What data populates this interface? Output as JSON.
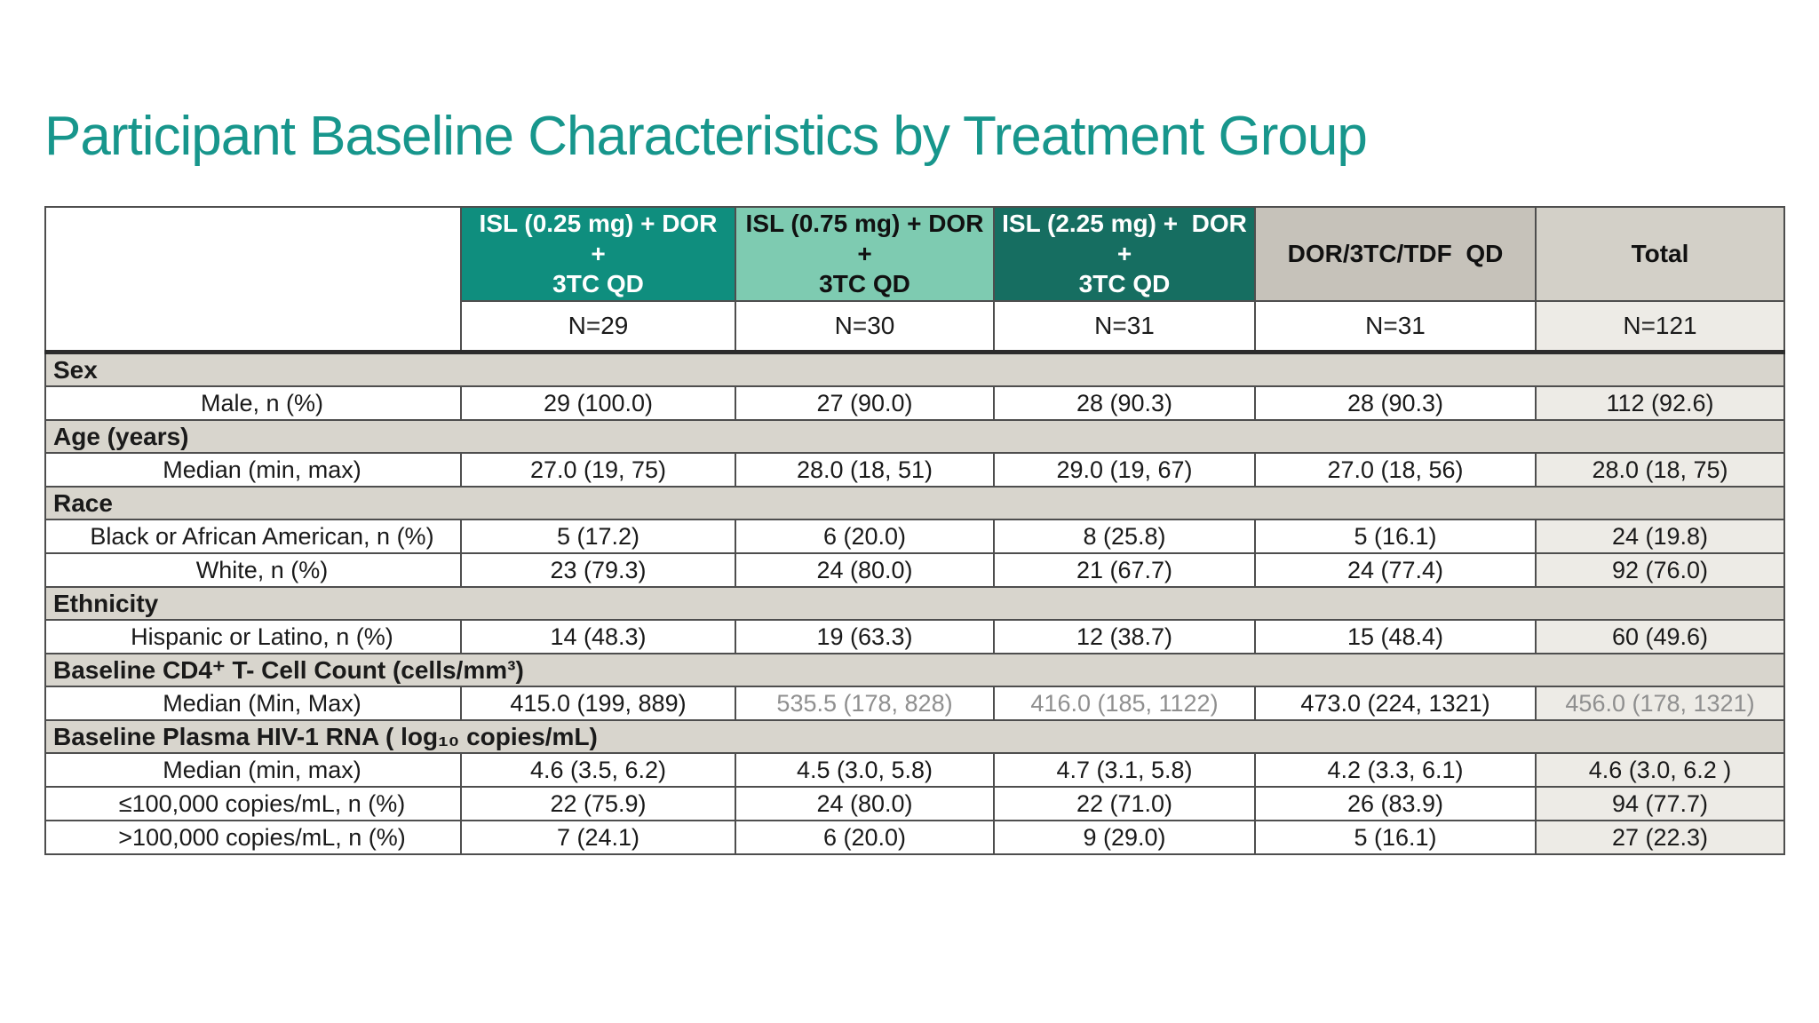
{
  "slide": {
    "title": "Participant Baseline Characteristics by Treatment Group"
  },
  "colors": {
    "title_accent": "#17968c",
    "header_teal": "#0f8e7e",
    "header_light_green": "#7ecbb1",
    "header_dark_teal": "#166e61",
    "header_gray": "#c6c2ba",
    "header_total_gray": "#d3d0c8",
    "section_band": "#d8d5cd",
    "total_column_bg": "#edebe6",
    "muted_text": "#8f8f8f"
  },
  "table": {
    "columns": [
      {
        "label": "ISL (0.25 mg) + DOR +\n3TC QD",
        "n": "N=29",
        "header_bg": "#0f8e7e",
        "header_text": "#ffffff"
      },
      {
        "label": "ISL (0.75 mg) + DOR +\n3TC QD",
        "n": "N=30",
        "header_bg": "#7ecbb1",
        "header_text": "#111111"
      },
      {
        "label": "ISL (2.25 mg) +  DOR +\n3TC QD",
        "n": "N=31",
        "header_bg": "#166e61",
        "header_text": "#ffffff"
      },
      {
        "label": "DOR/3TC/TDF  QD",
        "n": "N=31",
        "header_bg": "#c6c2ba",
        "header_text": "#111111"
      },
      {
        "label": "Total",
        "n": "N=121",
        "header_bg": "#d3d0c8",
        "header_text": "#111111",
        "is_total": true
      }
    ],
    "sections": [
      {
        "header": "Sex",
        "rows": [
          {
            "label": "Male, n (%)",
            "values": [
              "29 (100.0)",
              "27 (90.0)",
              "28 (90.3)",
              "28 (90.3)",
              "112 (92.6)"
            ]
          }
        ]
      },
      {
        "header": "Age (years)",
        "rows": [
          {
            "label": "Median (min, max)",
            "values": [
              "27.0 (19, 75)",
              "28.0 (18, 51)",
              "29.0 (19, 67)",
              "27.0 (18, 56)",
              "28.0 (18, 75)"
            ]
          }
        ]
      },
      {
        "header": "Race",
        "rows": [
          {
            "label": "Black or African American, n (%)",
            "values": [
              "5 (17.2)",
              "6 (20.0)",
              "8 (25.8)",
              "5 (16.1)",
              "24 (19.8)"
            ]
          },
          {
            "label": "White, n (%)",
            "values": [
              "23 (79.3)",
              "24 (80.0)",
              "21 (67.7)",
              "24 (77.4)",
              "92 (76.0)"
            ]
          }
        ]
      },
      {
        "header": "Ethnicity",
        "rows": [
          {
            "label": "Hispanic or Latino, n (%)",
            "values": [
              "14 (48.3)",
              "19 (63.3)",
              "12 (38.7)",
              "15 (48.4)",
              "60 (49.6)"
            ]
          }
        ]
      },
      {
        "header": "Baseline CD4⁺ T- Cell Count (cells/mm³)",
        "rows": [
          {
            "label": "Median (Min, Max)",
            "values": [
              "415.0 (199, 889)",
              "535.5 (178, 828)",
              "416.0 (185, 1122)",
              "473.0 (224, 1321)",
              "456.0 (178, 1321)"
            ],
            "muted": [
              false,
              true,
              true,
              false,
              true
            ]
          }
        ]
      },
      {
        "header": "Baseline Plasma HIV-1 RNA ( log₁₀ copies/mL)",
        "rows": [
          {
            "label": "Median (min, max)",
            "values": [
              "4.6 (3.5, 6.2)",
              "4.5 (3.0, 5.8)",
              "4.7 (3.1, 5.8)",
              "4.2 (3.3, 6.1)",
              "4.6 (3.0, 6.2 )"
            ]
          },
          {
            "label": "≤100,000 copies/mL, n (%)",
            "values": [
              "22 (75.9)",
              "24 (80.0)",
              "22 (71.0)",
              "26 (83.9)",
              "94 (77.7)"
            ]
          },
          {
            "label": ">100,000 copies/mL, n (%)",
            "values": [
              "7 (24.1)",
              "6 (20.0)",
              "9 (29.0)",
              "5 (16.1)",
              "27 (22.3)"
            ]
          }
        ]
      }
    ]
  }
}
